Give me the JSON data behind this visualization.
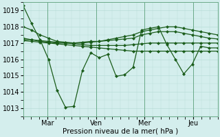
{
  "xlabel": "Pression niveau de la mer( hPa )",
  "ylim": [
    1012.5,
    1019.5
  ],
  "xlim": [
    0,
    96
  ],
  "yticks": [
    1013,
    1014,
    1015,
    1016,
    1017,
    1018,
    1019
  ],
  "xtick_positions": [
    12,
    36,
    60,
    84
  ],
  "xtick_labels": [
    "Mar",
    "Ven",
    "Mer",
    "Jeu"
  ],
  "bg_color": "#d4eeed",
  "grid_color": "#b8ddd8",
  "line_color": "#1a5c1a",
  "series": [
    [
      1019.3,
      1018.2,
      1017.2,
      1016.0,
      1014.1,
      1013.05,
      1013.1,
      1015.3,
      1016.4,
      1016.1,
      1016.3,
      1014.95,
      1015.05,
      1015.5,
      1017.8,
      1017.9,
      1018.0,
      1016.9,
      1016.0,
      1015.1,
      1015.7,
      1016.8,
      1016.7,
      1016.7
    ],
    [
      1017.2,
      1017.2,
      1017.1,
      1017.05,
      1017.0,
      1017.0,
      1017.0,
      1017.05,
      1017.1,
      1017.1,
      1017.15,
      1017.2,
      1017.25,
      1017.3,
      1017.5,
      1017.6,
      1017.7,
      1017.7,
      1017.7,
      1017.6,
      1017.5,
      1017.4,
      1017.3,
      1017.25
    ],
    [
      1017.3,
      1017.2,
      1017.15,
      1017.1,
      1017.05,
      1017.0,
      1016.95,
      1016.9,
      1016.85,
      1016.85,
      1016.85,
      1016.85,
      1016.85,
      1016.9,
      1016.95,
      1017.0,
      1017.0,
      1017.0,
      1017.0,
      1017.0,
      1017.0,
      1017.0,
      1017.0,
      1017.0
    ],
    [
      1017.15,
      1017.1,
      1017.05,
      1017.0,
      1016.95,
      1016.9,
      1016.85,
      1016.8,
      1016.75,
      1016.7,
      1016.65,
      1016.6,
      1016.55,
      1016.5,
      1016.5,
      1016.5,
      1016.5,
      1016.5,
      1016.5,
      1016.5,
      1016.5,
      1016.5,
      1016.5,
      1016.5
    ],
    [
      1018.0,
      1017.8,
      1017.5,
      1017.3,
      1017.1,
      1017.05,
      1017.0,
      1017.0,
      1017.05,
      1017.1,
      1017.2,
      1017.3,
      1017.4,
      1017.5,
      1017.7,
      1017.8,
      1017.9,
      1018.0,
      1018.0,
      1017.9,
      1017.8,
      1017.7,
      1017.6,
      1017.5
    ]
  ],
  "n_points": 24
}
